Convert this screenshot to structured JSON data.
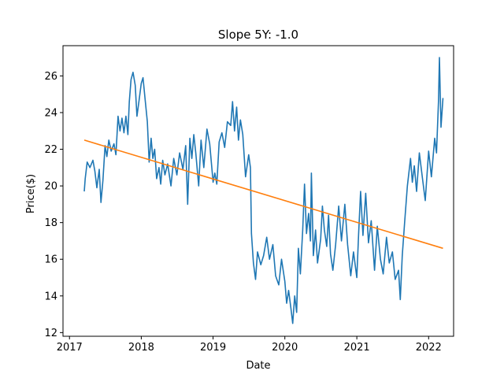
{
  "chart_data": {
    "type": "line",
    "title": "Slope 5Y: -1.0",
    "xlabel": "Date",
    "ylabel": "Price($)",
    "xlim": [
      "2016-11-29",
      "2022-05-08"
    ],
    "ylim": [
      11.8,
      27.65
    ],
    "x_ticks": [
      "2017",
      "2018",
      "2019",
      "2020",
      "2021",
      "2022"
    ],
    "y_ticks": [
      12,
      14,
      16,
      18,
      20,
      22,
      24,
      26
    ],
    "grid": false,
    "series": [
      {
        "color": "#1f77b4",
        "points": [
          [
            "2017-03-17",
            19.7
          ],
          [
            "2017-03-22",
            20.4
          ],
          [
            "2017-04-01",
            21.3
          ],
          [
            "2017-04-15",
            21.0
          ],
          [
            "2017-04-30",
            21.4
          ],
          [
            "2017-05-10",
            20.8
          ],
          [
            "2017-05-20",
            19.9
          ],
          [
            "2017-06-01",
            20.9
          ],
          [
            "2017-06-10",
            19.1
          ],
          [
            "2017-06-20",
            20.3
          ],
          [
            "2017-07-01",
            22.2
          ],
          [
            "2017-07-10",
            21.6
          ],
          [
            "2017-07-20",
            22.5
          ],
          [
            "2017-08-01",
            21.9
          ],
          [
            "2017-08-15",
            22.3
          ],
          [
            "2017-08-25",
            21.7
          ],
          [
            "2017-09-05",
            23.8
          ],
          [
            "2017-09-15",
            23.0
          ],
          [
            "2017-09-25",
            23.7
          ],
          [
            "2017-10-05",
            22.9
          ],
          [
            "2017-10-15",
            23.8
          ],
          [
            "2017-10-25",
            22.8
          ],
          [
            "2017-11-01",
            24.6
          ],
          [
            "2017-11-10",
            25.8
          ],
          [
            "2017-11-20",
            26.2
          ],
          [
            "2017-12-01",
            25.5
          ],
          [
            "2017-12-10",
            23.8
          ],
          [
            "2017-12-20",
            24.6
          ],
          [
            "2018-01-01",
            25.6
          ],
          [
            "2018-01-10",
            25.9
          ],
          [
            "2018-01-20",
            24.8
          ],
          [
            "2018-02-01",
            23.5
          ],
          [
            "2018-02-10",
            21.3
          ],
          [
            "2018-02-20",
            22.6
          ],
          [
            "2018-03-01",
            21.5
          ],
          [
            "2018-03-10",
            22.0
          ],
          [
            "2018-03-20",
            20.4
          ],
          [
            "2018-04-01",
            21.0
          ],
          [
            "2018-04-10",
            20.1
          ],
          [
            "2018-04-20",
            21.4
          ],
          [
            "2018-05-01",
            20.6
          ],
          [
            "2018-05-15",
            21.2
          ],
          [
            "2018-06-01",
            20.0
          ],
          [
            "2018-06-15",
            21.5
          ],
          [
            "2018-07-01",
            20.6
          ],
          [
            "2018-07-15",
            21.8
          ],
          [
            "2018-08-01",
            20.9
          ],
          [
            "2018-08-15",
            22.2
          ],
          [
            "2018-08-25",
            19.0
          ],
          [
            "2018-09-05",
            22.6
          ],
          [
            "2018-09-15",
            21.5
          ],
          [
            "2018-09-25",
            22.8
          ],
          [
            "2018-10-05",
            21.8
          ],
          [
            "2018-10-20",
            20.0
          ],
          [
            "2018-11-01",
            22.5
          ],
          [
            "2018-11-15",
            21.0
          ],
          [
            "2018-12-01",
            23.1
          ],
          [
            "2018-12-15",
            22.3
          ],
          [
            "2019-01-01",
            20.2
          ],
          [
            "2019-01-10",
            20.7
          ],
          [
            "2019-01-20",
            20.1
          ],
          [
            "2019-02-01",
            22.4
          ],
          [
            "2019-02-15",
            22.9
          ],
          [
            "2019-03-01",
            22.1
          ],
          [
            "2019-03-15",
            23.5
          ],
          [
            "2019-04-01",
            23.3
          ],
          [
            "2019-04-10",
            24.6
          ],
          [
            "2019-04-20",
            23.0
          ],
          [
            "2019-05-01",
            24.3
          ],
          [
            "2019-05-10",
            22.5
          ],
          [
            "2019-05-20",
            23.6
          ],
          [
            "2019-06-01",
            22.8
          ],
          [
            "2019-06-15",
            20.5
          ],
          [
            "2019-07-01",
            21.7
          ],
          [
            "2019-07-10",
            21.0
          ],
          [
            "2019-07-15",
            17.4
          ],
          [
            "2019-07-25",
            15.8
          ],
          [
            "2019-08-05",
            14.9
          ],
          [
            "2019-08-15",
            16.4
          ],
          [
            "2019-09-01",
            15.7
          ],
          [
            "2019-09-15",
            16.2
          ],
          [
            "2019-10-01",
            17.2
          ],
          [
            "2019-10-15",
            16.0
          ],
          [
            "2019-11-01",
            16.8
          ],
          [
            "2019-11-15",
            15.1
          ],
          [
            "2019-12-01",
            14.6
          ],
          [
            "2019-12-15",
            16.0
          ],
          [
            "2020-01-01",
            14.8
          ],
          [
            "2020-01-10",
            13.6
          ],
          [
            "2020-01-20",
            14.3
          ],
          [
            "2020-02-01",
            13.3
          ],
          [
            "2020-02-10",
            12.5
          ],
          [
            "2020-02-20",
            14.0
          ],
          [
            "2020-03-01",
            13.1
          ],
          [
            "2020-03-10",
            16.6
          ],
          [
            "2020-03-20",
            15.2
          ],
          [
            "2020-04-01",
            17.6
          ],
          [
            "2020-04-10",
            20.1
          ],
          [
            "2020-04-20",
            17.4
          ],
          [
            "2020-05-01",
            18.5
          ],
          [
            "2020-05-10",
            17.0
          ],
          [
            "2020-05-15",
            20.7
          ],
          [
            "2020-05-25",
            16.2
          ],
          [
            "2020-06-05",
            17.6
          ],
          [
            "2020-06-15",
            15.8
          ],
          [
            "2020-07-01",
            17.1
          ],
          [
            "2020-07-10",
            18.9
          ],
          [
            "2020-07-20",
            17.6
          ],
          [
            "2020-08-01",
            16.7
          ],
          [
            "2020-08-10",
            18.4
          ],
          [
            "2020-08-20",
            16.3
          ],
          [
            "2020-09-01",
            15.4
          ],
          [
            "2020-09-15",
            16.8
          ],
          [
            "2020-10-01",
            18.9
          ],
          [
            "2020-10-15",
            17.0
          ],
          [
            "2020-11-01",
            19.0
          ],
          [
            "2020-11-15",
            16.8
          ],
          [
            "2020-12-01",
            15.1
          ],
          [
            "2020-12-15",
            16.4
          ],
          [
            "2021-01-01",
            15.0
          ],
          [
            "2021-01-10",
            17.4
          ],
          [
            "2021-01-20",
            19.7
          ],
          [
            "2021-02-01",
            17.3
          ],
          [
            "2021-02-15",
            19.6
          ],
          [
            "2021-03-01",
            16.9
          ],
          [
            "2021-03-15",
            18.1
          ],
          [
            "2021-04-01",
            15.4
          ],
          [
            "2021-04-15",
            17.8
          ],
          [
            "2021-05-01",
            16.0
          ],
          [
            "2021-05-15",
            15.2
          ],
          [
            "2021-06-01",
            17.2
          ],
          [
            "2021-06-15",
            15.8
          ],
          [
            "2021-07-01",
            16.4
          ],
          [
            "2021-07-15",
            14.9
          ],
          [
            "2021-08-01",
            15.4
          ],
          [
            "2021-08-10",
            13.8
          ],
          [
            "2021-08-20",
            16.2
          ],
          [
            "2021-09-01",
            18.0
          ],
          [
            "2021-09-15",
            20.0
          ],
          [
            "2021-10-01",
            21.5
          ],
          [
            "2021-10-10",
            20.2
          ],
          [
            "2021-10-20",
            21.1
          ],
          [
            "2021-11-01",
            19.7
          ],
          [
            "2021-11-15",
            21.8
          ],
          [
            "2021-12-01",
            20.4
          ],
          [
            "2021-12-15",
            19.2
          ],
          [
            "2022-01-01",
            21.9
          ],
          [
            "2022-01-15",
            20.5
          ],
          [
            "2022-02-01",
            22.6
          ],
          [
            "2022-02-10",
            21.8
          ],
          [
            "2022-02-20",
            24.6
          ],
          [
            "2022-02-25",
            27.0
          ],
          [
            "2022-03-05",
            23.2
          ],
          [
            "2022-03-15",
            24.8
          ]
        ]
      },
      {
        "color": "#ff7f0e",
        "points": [
          [
            "2017-03-17",
            22.5
          ],
          [
            "2022-03-15",
            16.6
          ]
        ]
      }
    ]
  }
}
